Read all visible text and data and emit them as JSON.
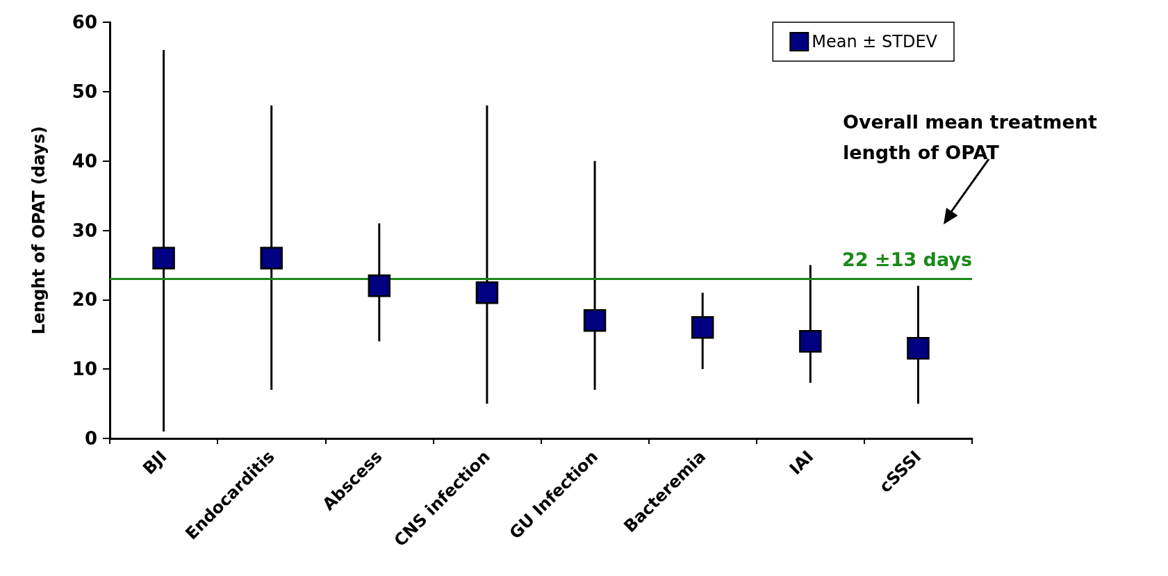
{
  "chart_data": {
    "type": "scatter",
    "ylabel": "Lenght of OPAT (days)",
    "categories": [
      "BJI",
      "Endocarditis",
      "Abscess",
      "CNS infection",
      "GU Infection",
      "Bacteremia",
      "IAI",
      "cSSSI"
    ],
    "series": [
      {
        "name": "Mean ± STDEV",
        "color": "#000080",
        "values": [
          26,
          26,
          22,
          21,
          17,
          16,
          14,
          13
        ],
        "errors": [
          [
            1,
            56
          ],
          [
            7,
            48
          ],
          [
            14,
            31
          ],
          [
            5,
            48
          ],
          [
            7,
            40
          ],
          [
            10,
            21
          ],
          [
            8,
            25
          ],
          [
            5,
            22
          ]
        ]
      }
    ],
    "ylim": [
      0,
      60
    ],
    "yticks": [
      0,
      10,
      20,
      30,
      40,
      50,
      60
    ],
    "ref_lines": [
      {
        "axis": "y",
        "value": 23,
        "label": "22 ±13 days",
        "color": "#1a8a1a"
      }
    ],
    "annotations": [
      "Overall mean treatment length of OPAT"
    ],
    "marker": "square",
    "legend": "top right",
    "grid": false
  }
}
